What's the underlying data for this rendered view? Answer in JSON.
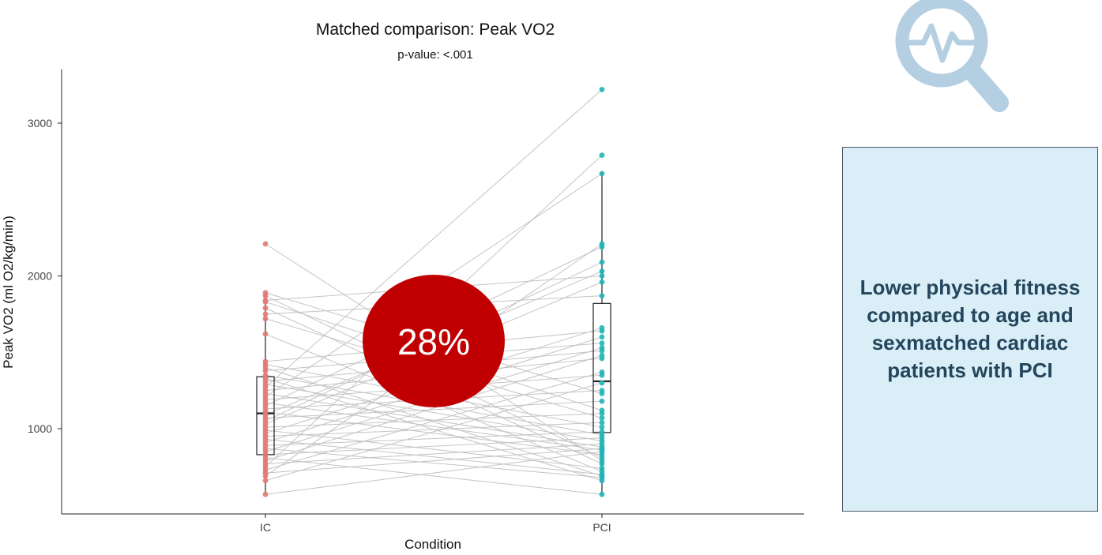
{
  "callout": {
    "text": "Lower physical fitness compared to age and sexmatched cardiac patients with PCI",
    "background": "#daeef8",
    "text_color": "#24465c"
  },
  "icon": {
    "name": "magnifier-heartbeat-icon",
    "color": "#b5cfe2"
  },
  "highlight": {
    "text": "28%",
    "color": "#c00000"
  },
  "chart_data": {
    "type": "scatter",
    "subtype": "paired dot plot with boxplots",
    "title": "Matched comparison: Peak VO2",
    "subtitle": "p-value: <.001",
    "xlabel": "Condition",
    "ylabel": "Peak VO2 (ml O2/kg/min)",
    "categories": [
      "IC",
      "PCI"
    ],
    "ylim": [
      450,
      3350
    ],
    "yticks": [
      1000,
      2000,
      3000
    ],
    "grid": false,
    "series": [
      {
        "name": "IC",
        "color": "#e07a72",
        "values": [
          2210,
          1890,
          1870,
          1840,
          1830,
          1790,
          1750,
          1720,
          1620,
          1440,
          1420,
          1400,
          1380,
          1350,
          1330,
          1310,
          1290,
          1270,
          1250,
          1230,
          1210,
          1190,
          1170,
          1150,
          1130,
          1110,
          1090,
          1070,
          1050,
          1030,
          1010,
          990,
          970,
          950,
          930,
          910,
          890,
          870,
          850,
          830,
          810,
          790,
          770,
          750,
          730,
          710,
          690,
          660,
          570
        ]
      },
      {
        "name": "PCI",
        "color": "#1fb5b8",
        "values": [
          3220,
          2790,
          2670,
          2210,
          2190,
          2090,
          2030,
          2000,
          1960,
          1870,
          1660,
          1640,
          1600,
          1560,
          1530,
          1510,
          1480,
          1460,
          1370,
          1350,
          1300,
          1250,
          1230,
          1180,
          1120,
          1100,
          1070,
          1040,
          1010,
          980,
          960,
          940,
          920,
          900,
          880,
          870,
          860,
          850,
          830,
          810,
          790,
          770,
          740,
          720,
          700,
          690,
          680,
          660,
          570
        ]
      }
    ],
    "boxplots": [
      {
        "category": "IC",
        "min": 570,
        "q1": 830,
        "median": 1100,
        "q3": 1340,
        "max": 1890
      },
      {
        "category": "PCI",
        "min": 570,
        "q1": 975,
        "median": 1310,
        "q3": 1820,
        "max": 2680
      }
    ]
  }
}
